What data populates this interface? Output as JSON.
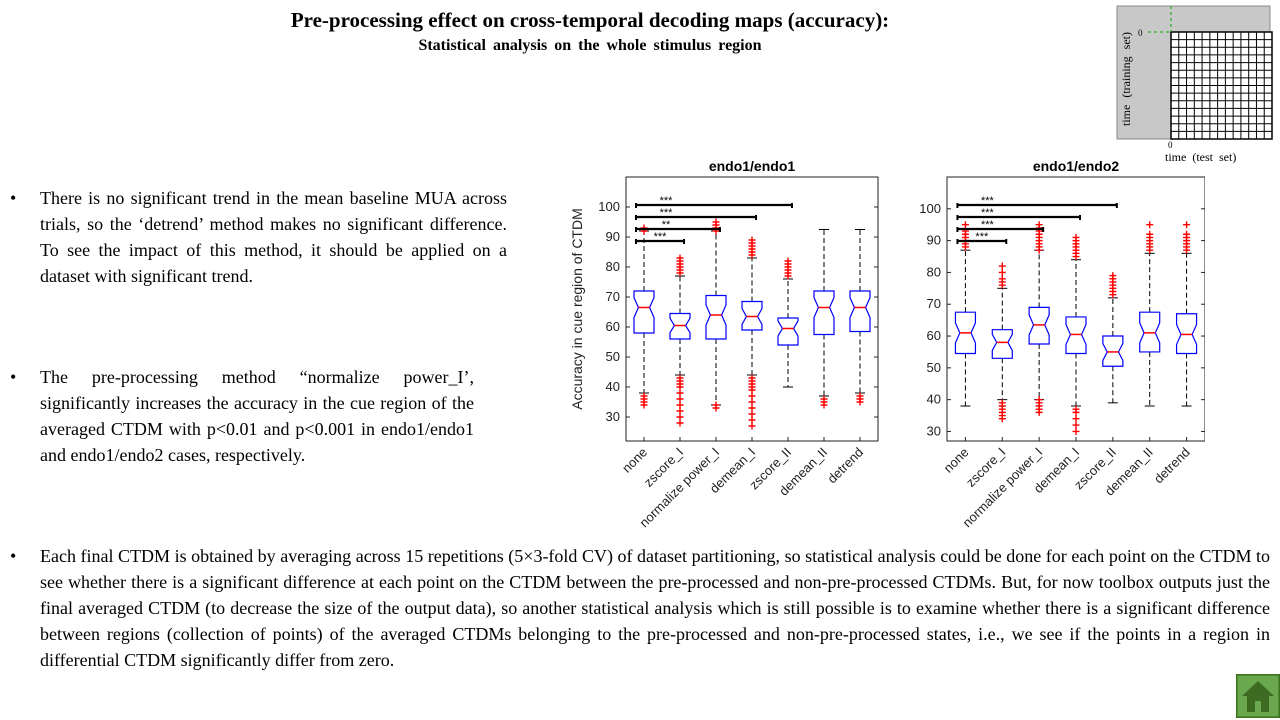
{
  "title": "Pre-processing effect on cross-temporal decoding maps (accuracy):",
  "subtitle": "Statistical analysis on the whole stimulus region",
  "inset": {
    "ylabel": "time (training set)",
    "xlabel": "time (test set)",
    "zero_y": "0",
    "zero_x": "0"
  },
  "bullets": [
    "There is no significant trend in the mean baseline MUA across trials, so the ‘detrend’ method makes no significant difference. To see the impact of this method, it should be applied on a dataset with significant trend.",
    "The pre-processing method “normalize power_I’, significantly increases the accuracy in the cue region of the averaged CTDM with p<0.01 and p<0.001 in endo1/endo1 and endo1/endo2 cases, respectively.",
    "Each final CTDM is obtained by averaging across 15 repetitions (5×3-fold CV) of dataset partitioning, so statistical analysis could be done for each point on the CTDM to see whether there is a significant difference at each point on the CTDM between the pre-processed and non-pre-processed CTDMs. But, for now toolbox outputs just the final averaged CTDM (to decrease the size of the output data), so another statistical analysis which is still possible is to examine whether there is a significant difference between regions (collection of points) of the averaged CTDMs belonging to the pre-processed and non-pre-processed states, i.e., we see if the points in a region in differential CTDM significantly differ from zero."
  ],
  "bullet_symbol": "•",
  "colors": {
    "box": "#0000ff",
    "median": "#ff0000",
    "outlier": "#ff0000",
    "bracket": "#000000"
  },
  "chart_data": [
    {
      "type": "boxplot",
      "title": "endo1/endo1",
      "ylabel": "Accuracy in cue region of CTDM",
      "ylim": [
        22,
        110
      ],
      "yticks": [
        30,
        40,
        50,
        60,
        70,
        80,
        90,
        100
      ],
      "categories": [
        "none",
        "zscore_I",
        "normalize power_I",
        "demean_I",
        "zscore_II",
        "demean_II",
        "detrend"
      ],
      "boxes": [
        {
          "whisker_low": 38,
          "q1": 58,
          "median": 66.5,
          "q3": 72,
          "whisker_high": 92,
          "outliers_low": [
            34,
            35,
            36,
            37
          ],
          "outliers_high": [
            92,
            93
          ]
        },
        {
          "whisker_low": 44,
          "q1": 56,
          "median": 60.5,
          "q3": 64.5,
          "whisker_high": 77,
          "outliers_low": [
            28,
            30,
            32,
            34,
            36,
            38,
            40,
            41,
            42,
            43
          ],
          "outliers_high": [
            78,
            79,
            80,
            81,
            82,
            83
          ]
        },
        {
          "whisker_low": 34,
          "q1": 56,
          "median": 64,
          "q3": 70.5,
          "whisker_high": 92,
          "outliers_low": [
            33,
            34
          ],
          "outliers_high": [
            92,
            93,
            94,
            95
          ]
        },
        {
          "whisker_low": 44,
          "q1": 59,
          "median": 63.5,
          "q3": 68.5,
          "whisker_high": 83,
          "outliers_low": [
            27,
            29,
            31,
            33,
            35,
            37,
            39,
            40,
            41,
            42,
            43
          ],
          "outliers_high": [
            84,
            85,
            86,
            87,
            88,
            89
          ]
        },
        {
          "whisker_low": 40,
          "q1": 54,
          "median": 59.5,
          "q3": 63,
          "whisker_high": 76,
          "outliers_low": [],
          "outliers_high": [
            77,
            78,
            79,
            80,
            81,
            82
          ]
        },
        {
          "whisker_low": 37,
          "q1": 57.5,
          "median": 66.5,
          "q3": 72,
          "whisker_high": 92.5,
          "outliers_low": [
            34,
            35,
            36
          ],
          "outliers_high": []
        },
        {
          "whisker_low": 38,
          "q1": 58.5,
          "median": 66.5,
          "q3": 72,
          "whisker_high": 92.5,
          "outliers_low": [
            35,
            36,
            37
          ],
          "outliers_high": []
        }
      ],
      "significance": [
        {
          "from": 0,
          "to": 1,
          "label": "***"
        },
        {
          "from": 0,
          "to": 2,
          "label": "**"
        },
        {
          "from": 0,
          "to": 3,
          "label": "***"
        },
        {
          "from": 0,
          "to": 4,
          "label": "***"
        }
      ]
    },
    {
      "type": "boxplot",
      "title": "endo1/endo2",
      "ylabel": "",
      "ylim": [
        27,
        110
      ],
      "yticks": [
        30,
        40,
        50,
        60,
        70,
        80,
        90,
        100
      ],
      "categories": [
        "none",
        "zscore_I",
        "normalize power_I",
        "demean_I",
        "zscore_II",
        "demean_II",
        "detrend"
      ],
      "boxes": [
        {
          "whisker_low": 38,
          "q1": 54.5,
          "median": 61,
          "q3": 67.5,
          "whisker_high": 87,
          "outliers_low": [],
          "outliers_high": [
            88,
            89,
            90,
            91,
            92,
            93,
            95
          ]
        },
        {
          "whisker_low": 40,
          "q1": 53,
          "median": 58,
          "q3": 62,
          "whisker_high": 75,
          "outliers_low": [
            34,
            35,
            36,
            37,
            38,
            39
          ],
          "outliers_high": [
            76,
            77,
            78,
            80,
            82
          ]
        },
        {
          "whisker_low": 40,
          "q1": 57.5,
          "median": 63.5,
          "q3": 69,
          "whisker_high": 87,
          "outliers_low": [
            36,
            37,
            38,
            39,
            40
          ],
          "outliers_high": [
            87,
            88,
            89,
            90,
            91,
            92,
            93,
            94,
            95
          ]
        },
        {
          "whisker_low": 38,
          "q1": 54.5,
          "median": 60.5,
          "q3": 66,
          "whisker_high": 84,
          "outliers_low": [
            30,
            32,
            34,
            36,
            37
          ],
          "outliers_high": [
            85,
            86,
            87,
            88,
            89,
            90,
            91
          ]
        },
        {
          "whisker_low": 39,
          "q1": 50.5,
          "median": 55,
          "q3": 60,
          "whisker_high": 72,
          "outliers_low": [],
          "outliers_high": [
            73,
            74,
            75,
            76,
            77,
            78,
            79
          ]
        },
        {
          "whisker_low": 38,
          "q1": 55,
          "median": 61,
          "q3": 67.5,
          "whisker_high": 86,
          "outliers_low": [],
          "outliers_high": [
            87,
            88,
            89,
            90,
            91,
            92,
            95
          ]
        },
        {
          "whisker_low": 38,
          "q1": 54.5,
          "median": 60.5,
          "q3": 67,
          "whisker_high": 86,
          "outliers_low": [],
          "outliers_high": [
            87,
            88,
            89,
            90,
            91,
            92,
            95
          ]
        }
      ],
      "significance": [
        {
          "from": 0,
          "to": 1,
          "label": "***"
        },
        {
          "from": 0,
          "to": 2,
          "label": "***"
        },
        {
          "from": 0,
          "to": 3,
          "label": "***"
        },
        {
          "from": 0,
          "to": 4,
          "label": "***"
        }
      ]
    }
  ]
}
